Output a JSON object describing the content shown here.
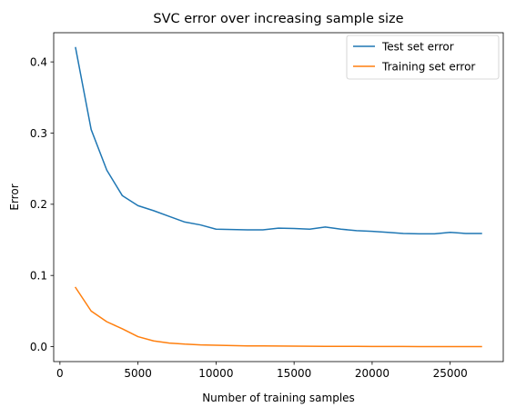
{
  "chart_data": {
    "type": "line",
    "title": "SVC error over increasing sample size",
    "xlabel": "Number of training samples",
    "ylabel": "Error",
    "xlim": [
      -400,
      28400
    ],
    "ylim": [
      -0.021,
      0.441
    ],
    "xticks": [
      0,
      5000,
      10000,
      15000,
      20000,
      25000
    ],
    "xtick_labels": [
      "0",
      "5000",
      "10000",
      "15000",
      "20000",
      "25000"
    ],
    "yticks": [
      0.0,
      0.1,
      0.2,
      0.3,
      0.4
    ],
    "ytick_labels": [
      "0.0",
      "0.1",
      "0.2",
      "0.3",
      "0.4"
    ],
    "grid": false,
    "legend_position": "top-right",
    "x": [
      1000,
      2000,
      3000,
      4000,
      5000,
      6000,
      7000,
      8000,
      9000,
      10000,
      11000,
      12000,
      13000,
      14000,
      15000,
      16000,
      17000,
      18000,
      19000,
      20000,
      21000,
      22000,
      23000,
      24000,
      25000,
      26000,
      27000
    ],
    "series": [
      {
        "name": "Test set error",
        "color": "#1f77b4",
        "values": [
          0.42,
          0.305,
          0.248,
          0.212,
          0.198,
          0.191,
          0.183,
          0.175,
          0.171,
          0.165,
          0.1645,
          0.164,
          0.164,
          0.1665,
          0.166,
          0.165,
          0.168,
          0.165,
          0.163,
          0.162,
          0.1605,
          0.159,
          0.1585,
          0.1585,
          0.1605,
          0.159,
          0.159
        ]
      },
      {
        "name": "Training set error",
        "color": "#ff7f0e",
        "values": [
          0.083,
          0.05,
          0.035,
          0.025,
          0.014,
          0.008,
          0.005,
          0.0035,
          0.0025,
          0.002,
          0.0015,
          0.001,
          0.001,
          0.0008,
          0.0007,
          0.0005,
          0.0004,
          0.0003,
          0.0003,
          0.0002,
          0.0002,
          0.0002,
          0.0001,
          0.0001,
          0.0001,
          0.0001,
          0.0001
        ]
      }
    ]
  }
}
